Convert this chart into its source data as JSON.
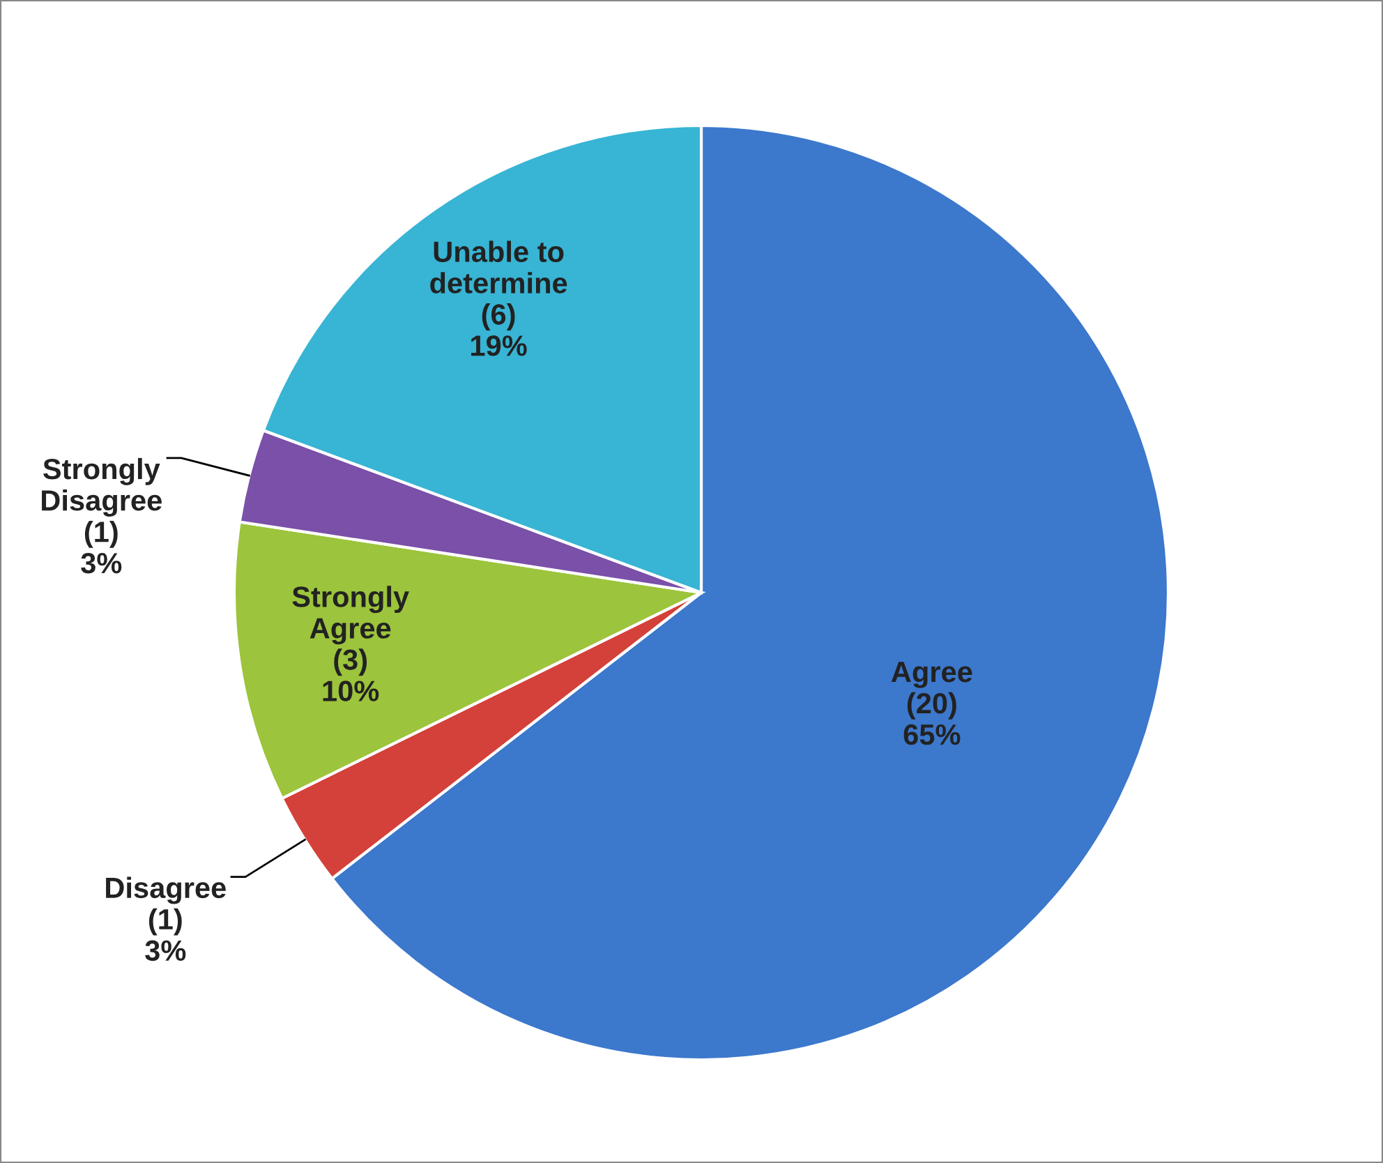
{
  "chart_data": {
    "type": "pie",
    "categories": [
      "Agree",
      "Disagree",
      "Strongly Agree",
      "Strongly Disagree",
      "Unable to determine"
    ],
    "values": [
      20,
      1,
      3,
      1,
      6
    ],
    "value_labels": [
      "(20)\n65%",
      "(1)\n3%",
      "(3)\n10%",
      "(1)\n3%",
      "(6)\n19%"
    ],
    "colors": [
      "#3c78cc",
      "#d4403a",
      "#9cc43c",
      "#7a50a8",
      "#38b4d4"
    ]
  }
}
